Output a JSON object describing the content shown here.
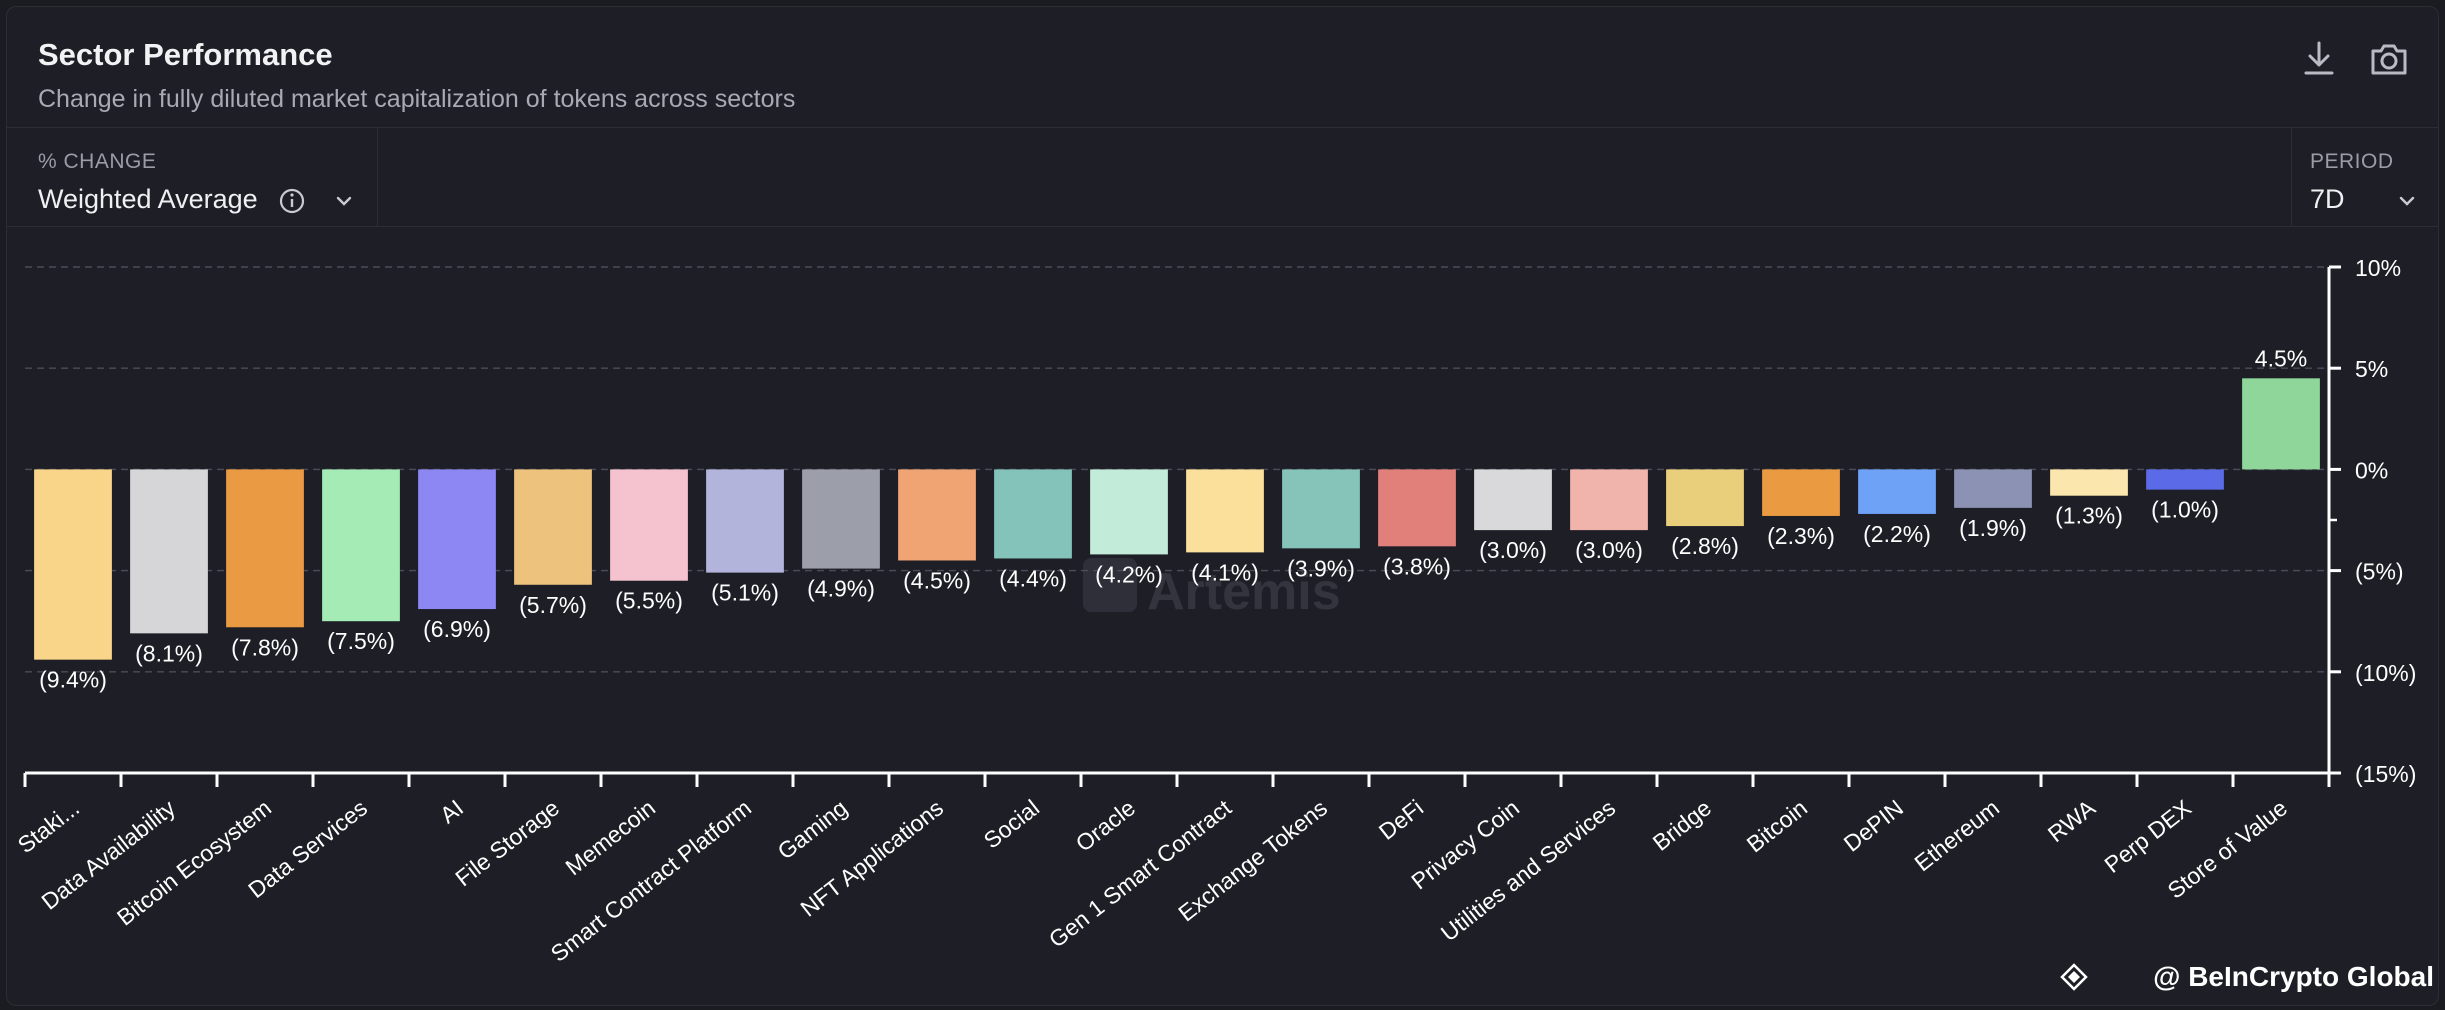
{
  "header": {
    "title": "Sector Performance",
    "subtitle": "Change in fully diluted market capitalization of tokens across sectors"
  },
  "controls": {
    "metric_label": "% CHANGE",
    "metric_value": "Weighted Average",
    "period_label": "PERIOD",
    "period_value": "7D"
  },
  "icons": [
    "download-icon",
    "camera-icon",
    "info-icon",
    "chevron-down-icon"
  ],
  "watermark": "Artemis",
  "credit": "@ BeInCrypto Global",
  "chart_data": {
    "type": "bar",
    "ylim": [
      -15,
      10
    ],
    "y_ticks": [
      10,
      5,
      0,
      -5,
      -10,
      -15
    ],
    "y_tick_labels": [
      "10%",
      "5%",
      "0%",
      "(5%)",
      "(10%)",
      "(15%)"
    ],
    "grid": true,
    "categories": [
      "Staki...",
      "Data Availability",
      "Bitcoin Ecosystem",
      "Data Services",
      "AI",
      "File Storage",
      "Memecoin",
      "Smart Contract Platform",
      "Gaming",
      "NFT Applications",
      "Social",
      "Oracle",
      "Gen 1 Smart Contract",
      "Exchange Tokens",
      "DeFi",
      "Privacy Coin",
      "Utilities and Services",
      "Bridge",
      "Bitcoin",
      "DePIN",
      "Ethereum",
      "RWA",
      "Perp DEX",
      "Store of Value"
    ],
    "values": [
      -9.4,
      -8.1,
      -7.8,
      -7.5,
      -6.9,
      -5.7,
      -5.5,
      -5.1,
      -4.9,
      -4.5,
      -4.4,
      -4.2,
      -4.1,
      -3.9,
      -3.8,
      -3.0,
      -3.0,
      -2.8,
      -2.3,
      -2.2,
      -1.9,
      -1.3,
      -1.0,
      4.5
    ],
    "labels": [
      "(9.4%)",
      "(8.1%)",
      "(7.8%)",
      "(7.5%)",
      "(6.9%)",
      "(5.7%)",
      "(5.5%)",
      "(5.1%)",
      "(4.9%)",
      "(4.5%)",
      "(4.4%)",
      "(4.2%)",
      "(4.1%)",
      "(3.9%)",
      "(3.8%)",
      "(3.0%)",
      "(3.0%)",
      "(2.8%)",
      "(2.3%)",
      "(2.2%)",
      "(1.9%)",
      "(1.3%)",
      "(1.0%)",
      "4.5%"
    ],
    "colors": [
      "#f9d58a",
      "#d6d6d8",
      "#ea9a42",
      "#a4ebb5",
      "#8c87f3",
      "#ecc27c",
      "#f4c3cf",
      "#b2b4dc",
      "#9c9eaa",
      "#f0a474",
      "#84c3b9",
      "#c3ebd9",
      "#fae09a",
      "#86c3b8",
      "#e17f7a",
      "#d9d9db",
      "#f1b4ac",
      "#e9cf7c",
      "#ea9a40",
      "#6da2f7",
      "#8b92b4",
      "#fbe6ad",
      "#5b6ae6",
      "#8fd69a"
    ]
  }
}
